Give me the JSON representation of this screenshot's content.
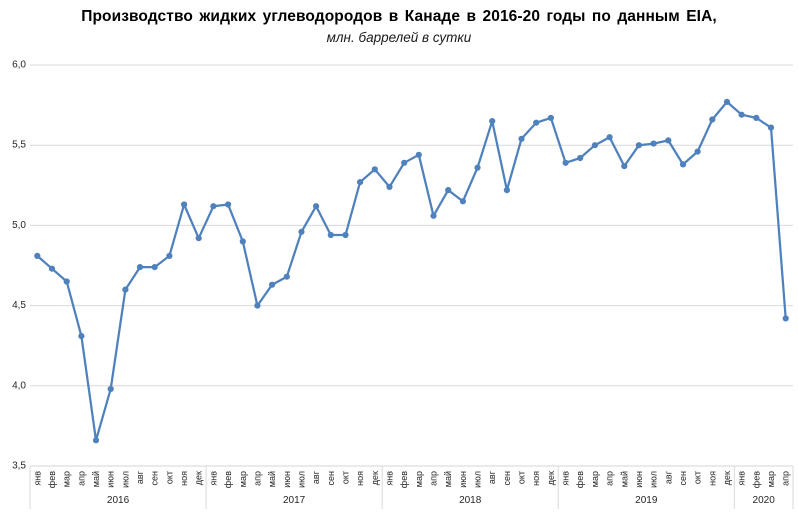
{
  "chart": {
    "title": "Производство жидких углеводородов в Канаде в 2016-20 годы по данным EIA,",
    "subtitle": "млн. баррелей в сутки"
  },
  "chart_data": {
    "type": "line",
    "title": "Производство жидких углеводородов в Канаде в 2016-20 годы по данным EIA,",
    "subtitle": "млн. баррелей в сутки",
    "ylim": [
      3.5,
      6.0
    ],
    "ytick_step": 0.5,
    "decimal_separator": ",",
    "grid": true,
    "legend_position": "none",
    "colors": {
      "line": "#4F81BD",
      "grid": "#D9D9D9",
      "axis_line": "#D4D4D4",
      "tick_text": "#262626",
      "year_text": "#262626"
    },
    "years": [
      {
        "label": "2016",
        "months": [
          "янв",
          "фев",
          "мар",
          "апр",
          "май",
          "июн",
          "июл",
          "авг",
          "сен",
          "окт",
          "ноя",
          "дек"
        ]
      },
      {
        "label": "2017",
        "months": [
          "янв",
          "фев",
          "мар",
          "апр",
          "май",
          "июн",
          "июл",
          "авг",
          "сен",
          "окт",
          "ноя",
          "дек"
        ]
      },
      {
        "label": "2018",
        "months": [
          "янв",
          "фев",
          "мар",
          "апр",
          "май",
          "июн",
          "июл",
          "авг",
          "сен",
          "окт",
          "ноя",
          "дек"
        ]
      },
      {
        "label": "2019",
        "months": [
          "янв",
          "фев",
          "мар",
          "апр",
          "май",
          "июн",
          "июл",
          "авг",
          "сен",
          "окт",
          "ноя",
          "дек"
        ]
      },
      {
        "label": "2020",
        "months": [
          "янв",
          "фев",
          "мар",
          "апр"
        ]
      }
    ],
    "values": [
      4.81,
      4.73,
      4.65,
      4.31,
      3.66,
      3.98,
      4.6,
      4.74,
      4.74,
      4.81,
      5.13,
      4.92,
      5.12,
      5.13,
      4.9,
      4.5,
      4.63,
      4.68,
      4.96,
      5.12,
      4.94,
      4.94,
      5.27,
      5.35,
      5.24,
      5.39,
      5.44,
      5.06,
      5.22,
      5.15,
      5.36,
      5.65,
      5.22,
      5.54,
      5.64,
      5.67,
      5.39,
      5.42,
      5.5,
      5.55,
      5.37,
      5.5,
      5.51,
      5.53,
      5.38,
      5.46,
      5.66,
      5.77,
      5.69,
      5.67,
      5.61,
      4.42
    ]
  }
}
